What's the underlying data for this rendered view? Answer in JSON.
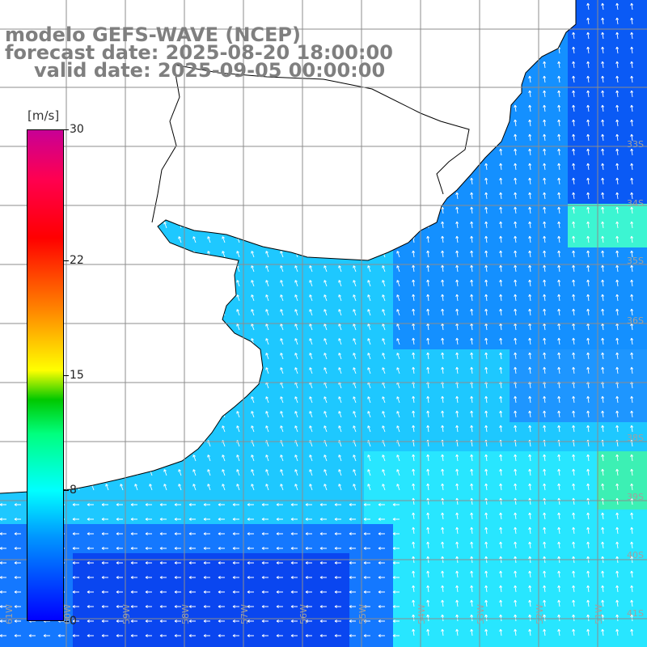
{
  "title": {
    "line1": "modelo GEFS-WAVE (NCEP)",
    "line2": "forecast date: 2025-08-20 18:00:00",
    "line3": "valid date: 2025-09-05 00:00:00"
  },
  "colorbar": {
    "unit": "[m/s]",
    "ticks": [
      "30",
      "22",
      "15",
      "8",
      "0"
    ],
    "tick_values": [
      30,
      22,
      15,
      8,
      0
    ],
    "min": 0,
    "max": 30
  },
  "lat_labels": [
    "33S",
    "34S",
    "35S",
    "36S",
    "38S",
    "39S",
    "40S",
    "41S"
  ],
  "lon_labels": [
    "61W",
    "60W",
    "59W",
    "58W",
    "57W",
    "56W",
    "55W",
    "54W",
    "53W",
    "52W",
    "51W"
  ],
  "colors": {
    "title": "#7f7f7f",
    "land": "#ffffff",
    "coast": "#000000",
    "grid": "#8c8c8c",
    "arrow": "#ffffff"
  }
}
